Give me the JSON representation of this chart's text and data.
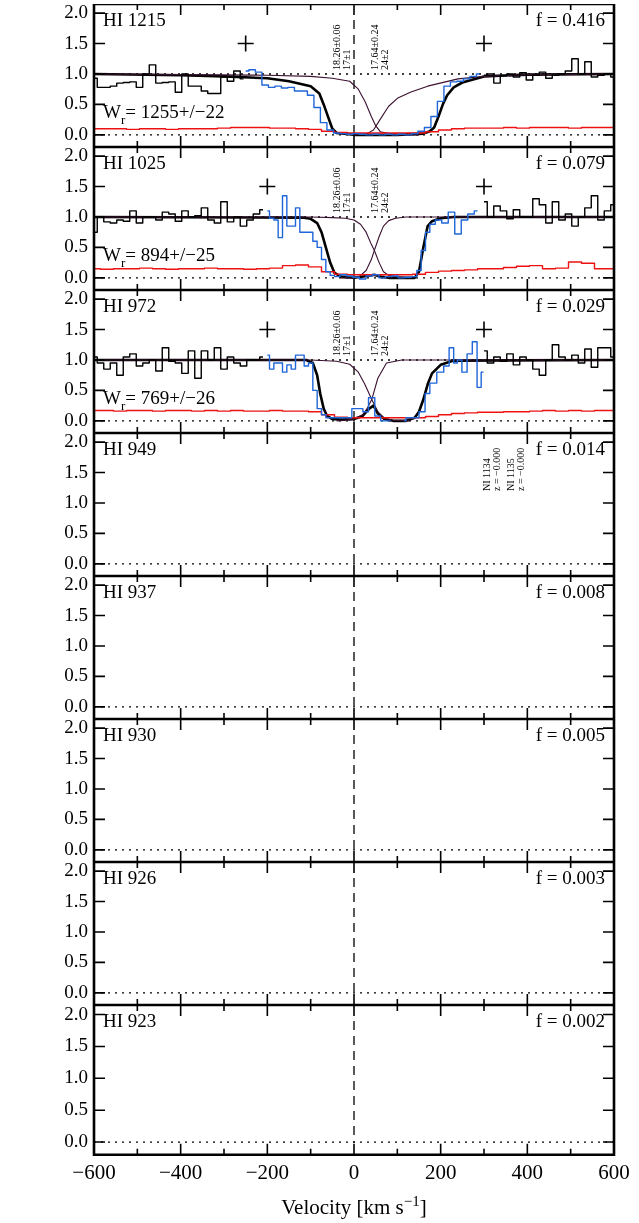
{
  "chart_data": [
    {
      "type": "step",
      "title": "HI 1215",
      "subtitle": "f = 0.416",
      "tick_labels": "y",
      "xlim": [
        -600,
        600
      ],
      "ylim": [
        -0.2,
        2.15
      ],
      "xticks": [
        {
          "value": -600,
          "label": null
        },
        {
          "value": -500,
          "label": null
        },
        {
          "value": -400,
          "label": null
        },
        {
          "value": -300,
          "label": null
        },
        {
          "value": -200,
          "label": null
        },
        {
          "value": -100,
          "label": null
        },
        {
          "value": 0,
          "label": null
        },
        {
          "value": 100,
          "label": null
        },
        {
          "value": 200,
          "label": null
        },
        {
          "value": 300,
          "label": null
        },
        {
          "value": 400,
          "label": null
        },
        {
          "value": 500,
          "label": null
        },
        {
          "value": 600,
          "label": null
        }
      ],
      "yticks": [
        {
          "value": 0,
          "label": "0.0"
        },
        {
          "value": 0.5,
          "label": "0.5"
        },
        {
          "value": 1,
          "label": "1.0"
        },
        {
          "value": 1.5,
          "label": "1.5"
        },
        {
          "value": 2,
          "label": "2.0"
        }
      ],
      "ref_lines": [
        {
          "axis": "y",
          "value": 1,
          "color": "#000000",
          "line_style": "dotted"
        },
        {
          "axis": "y",
          "value": 0,
          "color": "#000000",
          "line_style": "dotted"
        },
        {
          "axis": "x",
          "value": 0,
          "color": "#000000",
          "line_style": "dashed"
        }
      ],
      "annotations": [
        "W$_{r}$= 1255+/−22",
        "18.26±0.06\n17±1",
        "17.64±0.24\n24±2"
      ],
      "series": [
        {
          "color": "#000000",
          "x": [
            -600,
            -585,
            -570,
            -555,
            -540,
            -525,
            -510,
            -495,
            -480,
            -465,
            -450,
            -435,
            -420,
            -405,
            -390,
            -375,
            -360,
            -345,
            -330,
            -315,
            -300,
            -285,
            -270,
            -255
          ],
          "values": [
            0.93,
            0.78,
            0.78,
            0.8,
            0.85,
            0.86,
            0.87,
            0.78,
            1.0,
            1.15,
            0.85,
            0.86,
            0.87,
            0.7,
            1.0,
            0.8,
            0.8,
            0.72,
            0.68,
            0.68,
            0.95,
            0.88,
            1.05,
            0.92
          ]
        },
        {
          "color": "#1f66d9",
          "x": [
            -250,
            -235,
            -220,
            -205,
            -190,
            -175,
            -160,
            -145,
            -130,
            -115,
            -100,
            -85,
            -70,
            -55,
            -40,
            -25,
            -10,
            5,
            20,
            35,
            50,
            65,
            80,
            95,
            110,
            125,
            140,
            155,
            170,
            185,
            200,
            215,
            230,
            245,
            260,
            275,
            290
          ],
          "values": [
            1.05,
            1.07,
            1.03,
            0.82,
            0.78,
            0.8,
            0.77,
            0.78,
            0.72,
            0.72,
            0.65,
            0.45,
            0.2,
            0.08,
            0.03,
            0.02,
            0.01,
            0.02,
            0.01,
            0.0,
            0.01,
            0.0,
            0.01,
            0.0,
            0.01,
            0.0,
            0.02,
            0.06,
            0.12,
            0.3,
            0.55,
            0.8,
            0.87,
            0.88,
            0.92,
            0.96,
            1.0
          ]
        },
        {
          "color": "#000000",
          "x": [
            300,
            315,
            330,
            345,
            360,
            375,
            390,
            405,
            420,
            435,
            450,
            465,
            480,
            495,
            510,
            525,
            540,
            555,
            570,
            585,
            600
          ],
          "values": [
            0.98,
            1.0,
            0.85,
            0.97,
            1.0,
            0.95,
            1.02,
            0.9,
            0.98,
            1.03,
            0.93,
            0.98,
            1.0,
            1.05,
            1.25,
            1.0,
            1.2,
            0.95,
            0.98,
            1.0,
            0.95
          ]
        },
        {
          "color": "#ee1111",
          "x": [
            -600,
            -570,
            -540,
            -510,
            -480,
            -450,
            -420,
            -390,
            -360,
            -330,
            -300,
            -270,
            -240,
            -210,
            -180,
            -150,
            -120,
            -90,
            -60,
            -30,
            0,
            30,
            60,
            90,
            120,
            150,
            180,
            210,
            240,
            270,
            300,
            330,
            360,
            390,
            420,
            450,
            480,
            510,
            540,
            570,
            600
          ],
          "values": [
            0.1,
            0.1,
            0.1,
            0.09,
            0.1,
            0.1,
            0.09,
            0.1,
            0.1,
            0.1,
            0.11,
            0.12,
            0.12,
            0.12,
            0.11,
            0.11,
            0.1,
            0.09,
            0.06,
            0.04,
            0.03,
            0.03,
            0.03,
            0.03,
            0.03,
            0.03,
            0.05,
            0.08,
            0.1,
            0.11,
            0.11,
            0.11,
            0.12,
            0.11,
            0.12,
            0.12,
            0.12,
            0.11,
            0.12,
            0.12,
            0.12
          ]
        },
        {
          "type": "line",
          "color": "#3a1030",
          "x": [
            -600,
            -400,
            -200,
            -100,
            -50,
            -10,
            10,
            26,
            40,
            50,
            61,
            80,
            110,
            150
          ],
          "values": [
            1.0,
            0.99,
            0.98,
            0.96,
            0.93,
            0.88,
            0.75,
            0.54,
            0.3,
            0.15,
            0.05,
            0.02,
            0.0,
            0.0
          ]
        },
        {
          "type": "line",
          "color": "#3a1030",
          "x": [
            0,
            30,
            45,
            60,
            80,
            100,
            130,
            170,
            240,
            300,
            400,
            600
          ],
          "values": [
            0.0,
            0.02,
            0.08,
            0.25,
            0.47,
            0.6,
            0.7,
            0.8,
            0.92,
            0.96,
            0.99,
            1.0
          ]
        },
        {
          "type": "line",
          "color": "#000000",
          "x": [
            -600,
            -400,
            -300,
            -200,
            -150,
            -100,
            -80,
            -70,
            -60,
            -50,
            -40,
            0,
            100,
            160,
            175,
            185,
            195,
            205,
            215,
            230,
            250,
            300,
            400,
            600
          ],
          "values": [
            1.0,
            0.98,
            0.96,
            0.93,
            0.88,
            0.8,
            0.68,
            0.5,
            0.3,
            0.1,
            0.03,
            0.0,
            0.0,
            0.02,
            0.06,
            0.12,
            0.3,
            0.5,
            0.65,
            0.78,
            0.86,
            0.96,
            0.99,
            1.0
          ]
        },
        {
          "type": "scatter",
          "marker": "cross",
          "color": "#000000",
          "x": [
            -250,
            300
          ],
          "values": [
            1.5,
            1.5
          ]
        }
      ]
    },
    {
      "type": "step",
      "title": "HI 1025",
      "subtitle": "f = 0.079",
      "tick_labels": "y",
      "xlim": [
        -600,
        600
      ],
      "ylim": [
        -0.2,
        2.15
      ],
      "xticks": [
        {
          "value": -600,
          "label": null
        },
        {
          "value": -500,
          "label": null
        },
        {
          "value": -400,
          "label": null
        },
        {
          "value": -300,
          "label": null
        },
        {
          "value": -200,
          "label": null
        },
        {
          "value": -100,
          "label": null
        },
        {
          "value": 0,
          "label": null
        },
        {
          "value": 100,
          "label": null
        },
        {
          "value": 200,
          "label": null
        },
        {
          "value": 300,
          "label": null
        },
        {
          "value": 400,
          "label": null
        },
        {
          "value": 500,
          "label": null
        },
        {
          "value": 600,
          "label": null
        }
      ],
      "yticks": [
        {
          "value": 0,
          "label": "0.0"
        },
        {
          "value": 0.5,
          "label": "0.5"
        },
        {
          "value": 1,
          "label": "1.0"
        },
        {
          "value": 1.5,
          "label": "1.5"
        },
        {
          "value": 2,
          "label": "2.0"
        }
      ],
      "ref_lines": [
        {
          "axis": "y",
          "value": 1,
          "color": "#000000",
          "line_style": "dotted"
        },
        {
          "axis": "y",
          "value": 0,
          "color": "#000000",
          "line_style": "dotted"
        },
        {
          "axis": "x",
          "value": 0,
          "color": "#000000",
          "line_style": "dashed"
        }
      ],
      "annotations": [
        "W$_{r}$= 894+/−25",
        "18.26±0.06\n17±1",
        "17.64±0.24\n24±2"
      ],
      "series": [
        {
          "color": "#000000",
          "x": [
            -600,
            -585,
            -570,
            -555,
            -540,
            -525,
            -510,
            -495,
            -480,
            -465,
            -450,
            -435,
            -420,
            -405,
            -390,
            -375,
            -360,
            -345,
            -330,
            -315,
            -300,
            -285,
            -270,
            -255,
            -240,
            -225,
            -210
          ],
          "values": [
            0.75,
            1.0,
            0.92,
            0.9,
            0.95,
            0.93,
            1.1,
            0.9,
            1.0,
            1.0,
            0.95,
            1.08,
            1.05,
            0.93,
            1.1,
            1.0,
            1.02,
            1.15,
            0.95,
            0.9,
            1.25,
            0.92,
            1.0,
            0.85,
            0.95,
            1.05,
            1.12
          ]
        },
        {
          "color": "#1f66d9",
          "x": [
            -200,
            -190,
            -180,
            -170,
            -160,
            -150,
            -140,
            -130,
            -120,
            -110,
            -100,
            -90,
            -80,
            -70,
            -60,
            -50,
            -40,
            -25,
            -10,
            5,
            20,
            35,
            50,
            65,
            80,
            95,
            110,
            125,
            140,
            150,
            160,
            170,
            180,
            195,
            210,
            225,
            240,
            255,
            270,
            285
          ],
          "values": [
            1.1,
            0.98,
            0.95,
            0.66,
            1.35,
            0.85,
            0.85,
            1.15,
            0.75,
            0.75,
            0.75,
            0.6,
            0.5,
            0.3,
            0.1,
            0.04,
            0.02,
            0.05,
            0.03,
            0.01,
            -0.02,
            0.03,
            0.05,
            0.0,
            0.02,
            0.03,
            0.0,
            0.01,
            0.02,
            0.12,
            0.45,
            0.75,
            0.88,
            0.95,
            0.9,
            1.08,
            0.72,
            0.95,
            1.05,
            1.1
          ]
        },
        {
          "color": "#000000",
          "x": [
            300,
            315,
            330,
            345,
            360,
            375,
            390,
            405,
            420,
            435,
            450,
            465,
            480,
            495,
            510,
            525,
            540,
            555,
            570,
            585,
            600
          ],
          "values": [
            1.25,
            1.0,
            1.18,
            1.1,
            0.97,
            1.12,
            1.0,
            1.0,
            1.3,
            1.2,
            0.9,
            1.25,
            0.95,
            1.05,
            0.85,
            1.0,
            1.15,
            1.35,
            0.95,
            1.1,
            1.2
          ]
        },
        {
          "color": "#ee1111",
          "x": [
            -600,
            -570,
            -540,
            -510,
            -480,
            -450,
            -420,
            -390,
            -360,
            -330,
            -300,
            -270,
            -240,
            -210,
            -180,
            -150,
            -120,
            -90,
            -60,
            -30,
            0,
            30,
            60,
            90,
            120,
            150,
            180,
            210,
            240,
            270,
            300,
            330,
            360,
            390,
            420,
            450,
            480,
            510,
            540,
            570,
            600
          ],
          "values": [
            0.15,
            0.14,
            0.15,
            0.15,
            0.16,
            0.15,
            0.14,
            0.15,
            0.15,
            0.16,
            0.15,
            0.15,
            0.14,
            0.15,
            0.16,
            0.2,
            0.21,
            0.18,
            0.1,
            0.06,
            0.05,
            0.05,
            0.05,
            0.05,
            0.05,
            0.06,
            0.09,
            0.11,
            0.12,
            0.13,
            0.15,
            0.15,
            0.17,
            0.19,
            0.2,
            0.15,
            0.16,
            0.26,
            0.24,
            0.15,
            0.15
          ]
        },
        {
          "type": "line",
          "color": "#3a1030",
          "x": [
            -600,
            -100,
            -50,
            -20,
            0,
            15,
            28,
            40,
            47,
            58,
            68,
            80,
            96,
            130
          ],
          "values": [
            1.0,
            1.0,
            0.99,
            0.98,
            0.95,
            0.88,
            0.75,
            0.55,
            0.45,
            0.25,
            0.1,
            0.04,
            0.02,
            0.0
          ]
        },
        {
          "type": "line",
          "color": "#3a1030",
          "x": [
            -30,
            0,
            12,
            28,
            40,
            47,
            58,
            68,
            80,
            96,
            120,
            200,
            600
          ],
          "values": [
            0.0,
            0.0,
            0.02,
            0.12,
            0.3,
            0.45,
            0.68,
            0.85,
            0.94,
            0.98,
            1.0,
            1.0,
            1.0
          ]
        },
        {
          "type": "line",
          "color": "#000000",
          "x": [
            -600,
            -120,
            -100,
            -85,
            -75,
            -65,
            -55,
            -45,
            -30,
            0,
            30,
            47,
            60,
            80,
            140,
            150,
            160,
            170,
            180,
            200,
            230,
            600
          ],
          "values": [
            1.0,
            0.99,
            0.97,
            0.9,
            0.75,
            0.5,
            0.25,
            0.08,
            0.02,
            0.0,
            0.03,
            0.05,
            0.02,
            0.0,
            0.0,
            0.1,
            0.5,
            0.85,
            0.93,
            0.98,
            1.0,
            1.0
          ]
        },
        {
          "type": "scatter",
          "marker": "cross",
          "color": "#000000",
          "x": [
            -200,
            300
          ],
          "values": [
            1.5,
            1.5
          ]
        }
      ]
    },
    {
      "type": "step",
      "title": "HI 972",
      "subtitle": "f = 0.029",
      "tick_labels": "y",
      "xlim": [
        -600,
        600
      ],
      "ylim": [
        -0.2,
        2.15
      ],
      "xticks": [
        {
          "value": -600,
          "label": null
        },
        {
          "value": -500,
          "label": null
        },
        {
          "value": -400,
          "label": null
        },
        {
          "value": -300,
          "label": null
        },
        {
          "value": -200,
          "label": null
        },
        {
          "value": -100,
          "label": null
        },
        {
          "value": 0,
          "label": null
        },
        {
          "value": 100,
          "label": null
        },
        {
          "value": 200,
          "label": null
        },
        {
          "value": 300,
          "label": null
        },
        {
          "value": 400,
          "label": null
        },
        {
          "value": 500,
          "label": null
        },
        {
          "value": 600,
          "label": null
        }
      ],
      "yticks": [
        {
          "value": 0,
          "label": "0.0"
        },
        {
          "value": 0.5,
          "label": "0.5"
        },
        {
          "value": 1,
          "label": "1.0"
        },
        {
          "value": 1.5,
          "label": "1.5"
        },
        {
          "value": 2,
          "label": "2.0"
        }
      ],
      "ref_lines": [
        {
          "axis": "y",
          "value": 1,
          "color": "#000000",
          "line_style": "dotted"
        },
        {
          "axis": "y",
          "value": 0,
          "color": "#000000",
          "line_style": "dotted"
        },
        {
          "axis": "x",
          "value": 0,
          "color": "#000000",
          "line_style": "dashed"
        }
      ],
      "annotations": [
        "W$_{r}$= 769+/−26",
        "18.26±0.06\n17±1",
        "17.64±0.24\n24±2"
      ],
      "series": [
        {
          "color": "#000000",
          "x": [
            -600,
            -585,
            -570,
            -555,
            -540,
            -525,
            -510,
            -495,
            -480,
            -465,
            -450,
            -435,
            -420,
            -405,
            -390,
            -375,
            -360,
            -345,
            -330,
            -315,
            -300,
            -285,
            -270,
            -255,
            -240,
            -225,
            -210
          ],
          "values": [
            1.05,
            0.95,
            0.85,
            0.95,
            0.75,
            1.05,
            1.1,
            0.9,
            0.95,
            1.0,
            0.82,
            1.2,
            0.98,
            0.95,
            0.78,
            1.15,
            0.7,
            1.15,
            1.0,
            1.2,
            0.85,
            1.05,
            0.95,
            0.9,
            1.0,
            1.0,
            1.05
          ]
        },
        {
          "color": "#1f66d9",
          "x": [
            -200,
            -190,
            -180,
            -170,
            -160,
            -150,
            -140,
            -130,
            -120,
            -110,
            -100,
            -90,
            -80,
            -70,
            -60,
            -50,
            -40,
            -30,
            -20,
            -10,
            0,
            15,
            26,
            41,
            55,
            68,
            85,
            100,
            115,
            125,
            140,
            160,
            168,
            182,
            200,
            214,
            225,
            235,
            242,
            256,
            266,
            280,
            288,
            299
          ],
          "values": [
            1.08,
            0.85,
            0.95,
            0.95,
            0.8,
            0.92,
            0.85,
            1.08,
            1.08,
            0.9,
            0.95,
            0.5,
            0.2,
            0.1,
            0.05,
            0.05,
            0.05,
            0.05,
            0.05,
            0.05,
            0.2,
            0.2,
            0.15,
            0.38,
            0.08,
            0.0,
            0.0,
            null,
            0.0,
            0.05,
            0.05,
            0.15,
            0.45,
            0.62,
            0.8,
            0.9,
            1.2,
            0.95,
            1.0,
            0.8,
            1.1,
            1.3,
            0.55,
            0.8
          ]
        },
        {
          "color": "#000000",
          "x": [
            300,
            315,
            330,
            345,
            360,
            375,
            390,
            405,
            420,
            435,
            450,
            465,
            480,
            495,
            510,
            525,
            540,
            555,
            570,
            585,
            600
          ],
          "values": [
            1.15,
            0.95,
            1.05,
            0.98,
            1.1,
            0.92,
            1.05,
            1.0,
            0.85,
            0.75,
            1.0,
            1.25,
            1.05,
            1.0,
            1.08,
            0.95,
            1.18,
            0.88,
            1.2,
            1.2,
            1.05
          ]
        },
        {
          "color": "#ee1111",
          "x": [
            -600,
            -570,
            -540,
            -510,
            -480,
            -450,
            -420,
            -390,
            -360,
            -330,
            -300,
            -270,
            -240,
            -210,
            -180,
            -150,
            -120,
            -90,
            -60,
            -30,
            0,
            30,
            60,
            90,
            120,
            150,
            180,
            210,
            240,
            270,
            300,
            330,
            360,
            390,
            420,
            450,
            480,
            510,
            540,
            570,
            600
          ],
          "values": [
            0.17,
            0.17,
            0.16,
            0.17,
            0.17,
            0.16,
            0.17,
            0.17,
            0.16,
            0.17,
            0.16,
            0.17,
            0.16,
            0.16,
            0.17,
            0.16,
            0.16,
            0.15,
            0.1,
            0.06,
            0.05,
            0.05,
            0.05,
            0.05,
            0.05,
            0.05,
            0.07,
            0.1,
            0.12,
            0.13,
            0.14,
            0.14,
            0.15,
            0.15,
            0.16,
            0.17,
            0.16,
            0.17,
            0.16,
            0.17,
            0.17
          ]
        },
        {
          "type": "line",
          "color": "#3a1030",
          "x": [
            -600,
            -100,
            -40,
            -10,
            10,
            25,
            41,
            55,
            70,
            90,
            130
          ],
          "values": [
            1.0,
            1.0,
            0.98,
            0.93,
            0.8,
            0.6,
            0.35,
            0.15,
            0.04,
            0.01,
            0.0
          ]
        },
        {
          "type": "line",
          "color": "#3a1030",
          "x": [
            -40,
            -2,
            20,
            30,
            41,
            55,
            75,
            110,
            200,
            600
          ],
          "values": [
            0.0,
            0.02,
            0.1,
            0.2,
            0.35,
            0.7,
            0.95,
            1.0,
            1.0,
            1.0
          ]
        },
        {
          "type": "line",
          "color": "#000000",
          "x": [
            -600,
            -110,
            -95,
            -85,
            -78,
            -70,
            -62,
            -50,
            -30,
            0,
            20,
            35,
            45,
            55,
            70,
            90,
            120,
            140,
            150,
            160,
            170,
            180,
            200,
            230,
            600
          ],
          "values": [
            1.0,
            1.0,
            0.95,
            0.75,
            0.45,
            0.2,
            0.08,
            0.03,
            0.02,
            0.03,
            0.08,
            0.2,
            0.25,
            0.12,
            0.03,
            0.0,
            0.0,
            0.05,
            0.15,
            0.35,
            0.6,
            0.78,
            0.92,
            0.99,
            1.0
          ]
        },
        {
          "type": "scatter",
          "marker": "cross",
          "color": "#000000",
          "x": [
            -200,
            300
          ],
          "values": [
            1.5,
            1.5
          ]
        }
      ]
    },
    {
      "type": "step",
      "title": "HI 949",
      "subtitle": "f = 0.014",
      "tick_labels": "y",
      "xlim": [
        -600,
        600
      ],
      "ylim": [
        -0.2,
        2.15
      ],
      "xticks": [
        {
          "value": -600,
          "label": null
        },
        {
          "value": -500,
          "label": null
        },
        {
          "value": -400,
          "label": null
        },
        {
          "value": -300,
          "label": null
        },
        {
          "value": -200,
          "label": null
        },
        {
          "value": -100,
          "label": null
        },
        {
          "value": 0,
          "label": null
        },
        {
          "value": 100,
          "label": null
        },
        {
          "value": 200,
          "label": null
        },
        {
          "value": 300,
          "label": null
        },
        {
          "value": 400,
          "label": null
        },
        {
          "value": 500,
          "label": null
        },
        {
          "value": 600,
          "label": null
        }
      ],
      "yticks": [
        {
          "value": 0,
          "label": "0.0"
        },
        {
          "value": 0.5,
          "label": "0.5"
        },
        {
          "value": 1,
          "label": "1.0"
        },
        {
          "value": 1.5,
          "label": "1.5"
        },
        {
          "value": 2,
          "label": "2.0"
        }
      ],
      "ref_lines": [
        {
          "axis": "y",
          "value": 0,
          "color": "#000000",
          "line_style": "dotted"
        },
        {
          "axis": "x",
          "value": 0,
          "color": "#000000",
          "line_style": "dashed"
        }
      ],
      "annotations": [
        "NI 1134\nz = −0.000",
        "NI 1135\nz = −0.000"
      ]
    },
    {
      "type": "step",
      "title": "HI 937",
      "subtitle": "f = 0.008",
      "tick_labels": "y",
      "xlim": [
        -600,
        600
      ],
      "ylim": [
        -0.2,
        2.15
      ],
      "xticks": [
        {
          "value": -600,
          "label": null
        },
        {
          "value": -500,
          "label": null
        },
        {
          "value": -400,
          "label": null
        },
        {
          "value": -300,
          "label": null
        },
        {
          "value": -200,
          "label": null
        },
        {
          "value": -100,
          "label": null
        },
        {
          "value": 0,
          "label": null
        },
        {
          "value": 100,
          "label": null
        },
        {
          "value": 200,
          "label": null
        },
        {
          "value": 300,
          "label": null
        },
        {
          "value": 400,
          "label": null
        },
        {
          "value": 500,
          "label": null
        },
        {
          "value": 600,
          "label": null
        }
      ],
      "yticks": [
        {
          "value": 0,
          "label": "0.0"
        },
        {
          "value": 0.5,
          "label": "0.5"
        },
        {
          "value": 1,
          "label": "1.0"
        },
        {
          "value": 1.5,
          "label": "1.5"
        },
        {
          "value": 2,
          "label": "2.0"
        }
      ],
      "ref_lines": [
        {
          "axis": "y",
          "value": 0,
          "color": "#000000",
          "line_style": "dotted"
        },
        {
          "axis": "x",
          "value": 0,
          "color": "#000000",
          "line_style": "dashed"
        }
      ]
    },
    {
      "type": "step",
      "title": "HI 930",
      "subtitle": "f = 0.005",
      "tick_labels": "y",
      "xlim": [
        -600,
        600
      ],
      "ylim": [
        -0.2,
        2.15
      ],
      "xticks": [
        {
          "value": -600,
          "label": null
        },
        {
          "value": -500,
          "label": null
        },
        {
          "value": -400,
          "label": null
        },
        {
          "value": -300,
          "label": null
        },
        {
          "value": -200,
          "label": null
        },
        {
          "value": -100,
          "label": null
        },
        {
          "value": 0,
          "label": null
        },
        {
          "value": 100,
          "label": null
        },
        {
          "value": 200,
          "label": null
        },
        {
          "value": 300,
          "label": null
        },
        {
          "value": 400,
          "label": null
        },
        {
          "value": 500,
          "label": null
        },
        {
          "value": 600,
          "label": null
        }
      ],
      "yticks": [
        {
          "value": 0,
          "label": "0.0"
        },
        {
          "value": 0.5,
          "label": "0.5"
        },
        {
          "value": 1,
          "label": "1.0"
        },
        {
          "value": 1.5,
          "label": "1.5"
        },
        {
          "value": 2,
          "label": "2.0"
        }
      ],
      "ref_lines": [
        {
          "axis": "y",
          "value": 0,
          "color": "#000000",
          "line_style": "dotted"
        },
        {
          "axis": "x",
          "value": 0,
          "color": "#000000",
          "line_style": "dashed"
        }
      ]
    },
    {
      "type": "step",
      "title": "HI 926",
      "subtitle": "f = 0.003",
      "tick_labels": "y",
      "xlim": [
        -600,
        600
      ],
      "ylim": [
        -0.2,
        2.15
      ],
      "xticks": [
        {
          "value": -600,
          "label": null
        },
        {
          "value": -500,
          "label": null
        },
        {
          "value": -400,
          "label": null
        },
        {
          "value": -300,
          "label": null
        },
        {
          "value": -200,
          "label": null
        },
        {
          "value": -100,
          "label": null
        },
        {
          "value": 0,
          "label": null
        },
        {
          "value": 100,
          "label": null
        },
        {
          "value": 200,
          "label": null
        },
        {
          "value": 300,
          "label": null
        },
        {
          "value": 400,
          "label": null
        },
        {
          "value": 500,
          "label": null
        },
        {
          "value": 600,
          "label": null
        }
      ],
      "yticks": [
        {
          "value": 0,
          "label": "0.0"
        },
        {
          "value": 0.5,
          "label": "0.5"
        },
        {
          "value": 1,
          "label": "1.0"
        },
        {
          "value": 1.5,
          "label": "1.5"
        },
        {
          "value": 2,
          "label": "2.0"
        }
      ],
      "ref_lines": [
        {
          "axis": "y",
          "value": 0,
          "color": "#000000",
          "line_style": "dotted"
        },
        {
          "axis": "x",
          "value": 0,
          "color": "#000000",
          "line_style": "dashed"
        }
      ]
    },
    {
      "type": "step",
      "title": "HI 923",
      "subtitle": "f = 0.002",
      "xlabel": "Velocity [km s$^{−1}$]",
      "xlim": [
        -600,
        600
      ],
      "ylim": [
        -0.2,
        2.15
      ],
      "xticks": [
        {
          "value": -600,
          "label": "−600"
        },
        {
          "value": -500,
          "label": null
        },
        {
          "value": -400,
          "label": "−400"
        },
        {
          "value": -300,
          "label": null
        },
        {
          "value": -200,
          "label": "−200"
        },
        {
          "value": -100,
          "label": null
        },
        0,
        {
          "value": 100,
          "label": null
        },
        200,
        {
          "value": 300,
          "label": null
        },
        400,
        {
          "value": 500,
          "label": null
        },
        600
      ],
      "yticks": [
        {
          "value": 0,
          "label": "0.0"
        },
        {
          "value": 0.5,
          "label": "0.5"
        },
        {
          "value": 1,
          "label": "1.0"
        },
        {
          "value": 1.5,
          "label": "1.5"
        },
        {
          "value": 2,
          "label": "2.0"
        }
      ],
      "ref_lines": [
        {
          "axis": "y",
          "value": 0,
          "color": "#000000",
          "line_style": "dotted"
        },
        {
          "axis": "x",
          "value": 0,
          "color": "#000000",
          "line_style": "dashed"
        }
      ]
    }
  ]
}
